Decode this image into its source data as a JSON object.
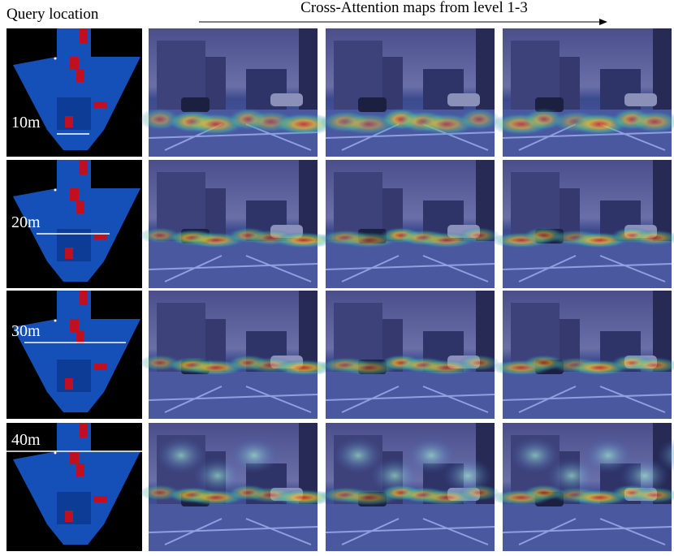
{
  "header": {
    "query_label": "Query location",
    "attention_label": "Cross-Attention maps from level 1-3"
  },
  "rows": [
    {
      "distance": "10m"
    },
    {
      "distance": "20m"
    },
    {
      "distance": "30m"
    },
    {
      "distance": "40m"
    }
  ]
}
